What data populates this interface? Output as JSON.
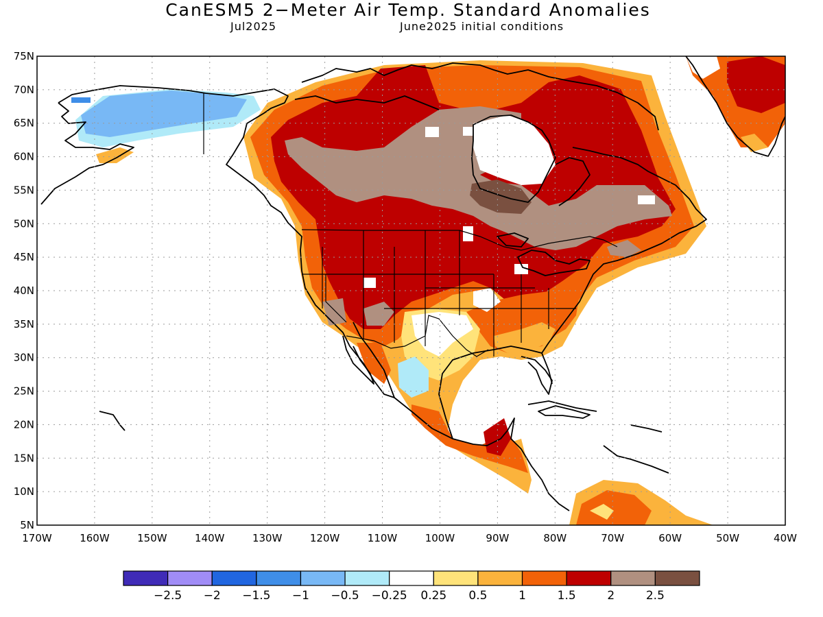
{
  "title": "CanESM5 2−Meter Air Temp. Standard Anomalies",
  "subtitle_left": "Jul2025",
  "subtitle_right": "June2025 initial conditions",
  "lat_labels": [
    "75N",
    "70N",
    "65N",
    "60N",
    "55N",
    "50N",
    "45N",
    "40N",
    "35N",
    "30N",
    "25N",
    "20N",
    "15N",
    "10N",
    "5N"
  ],
  "lon_labels": [
    "170W",
    "160W",
    "150W",
    "140W",
    "130W",
    "120W",
    "110W",
    "100W",
    "90W",
    "80W",
    "70W",
    "60W",
    "50W",
    "40W"
  ],
  "colorbar": {
    "colors": [
      "#3f2bb7",
      "#a08cf6",
      "#2166e0",
      "#3f8ee8",
      "#78b8f5",
      "#b0eaf8",
      "#ffffff",
      "#ffe37a",
      "#fbb33c",
      "#f26208",
      "#be0000",
      "#b09080",
      "#7a5040"
    ],
    "labels": [
      "−2.5",
      "−2",
      "−1.5",
      "−1",
      "−0.5",
      "−0.25",
      "0.25",
      "0.5",
      "1",
      "1.5",
      "2",
      "2.5"
    ]
  },
  "palette": {
    "white": "#ffffff",
    "blue_lt": "#b0eaf8",
    "blue": "#78b8f5",
    "yellow": "#ffe37a",
    "orange_lt": "#fbb33c",
    "orange": "#f26208",
    "red": "#be0000",
    "brown_lt": "#b09080",
    "brown": "#7a5040"
  }
}
